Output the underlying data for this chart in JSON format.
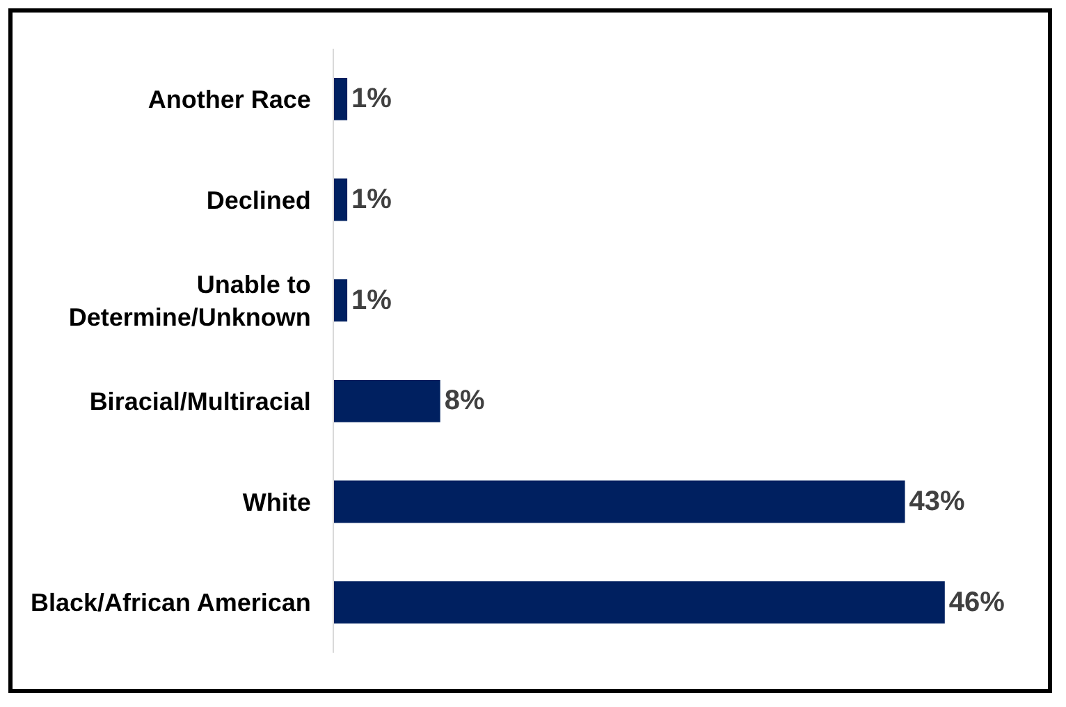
{
  "chart_data": {
    "type": "bar",
    "orientation": "horizontal",
    "categories": [
      "Another Race",
      "Declined",
      "Unable to Determine/Unknown",
      "Biracial/Multiracial",
      "White",
      "Black/African American"
    ],
    "values": [
      1,
      1,
      1,
      8,
      43,
      46
    ],
    "value_labels": [
      "1%",
      "1%",
      "1%",
      "8%",
      "43%",
      "46%"
    ],
    "color": "#002060"
  }
}
